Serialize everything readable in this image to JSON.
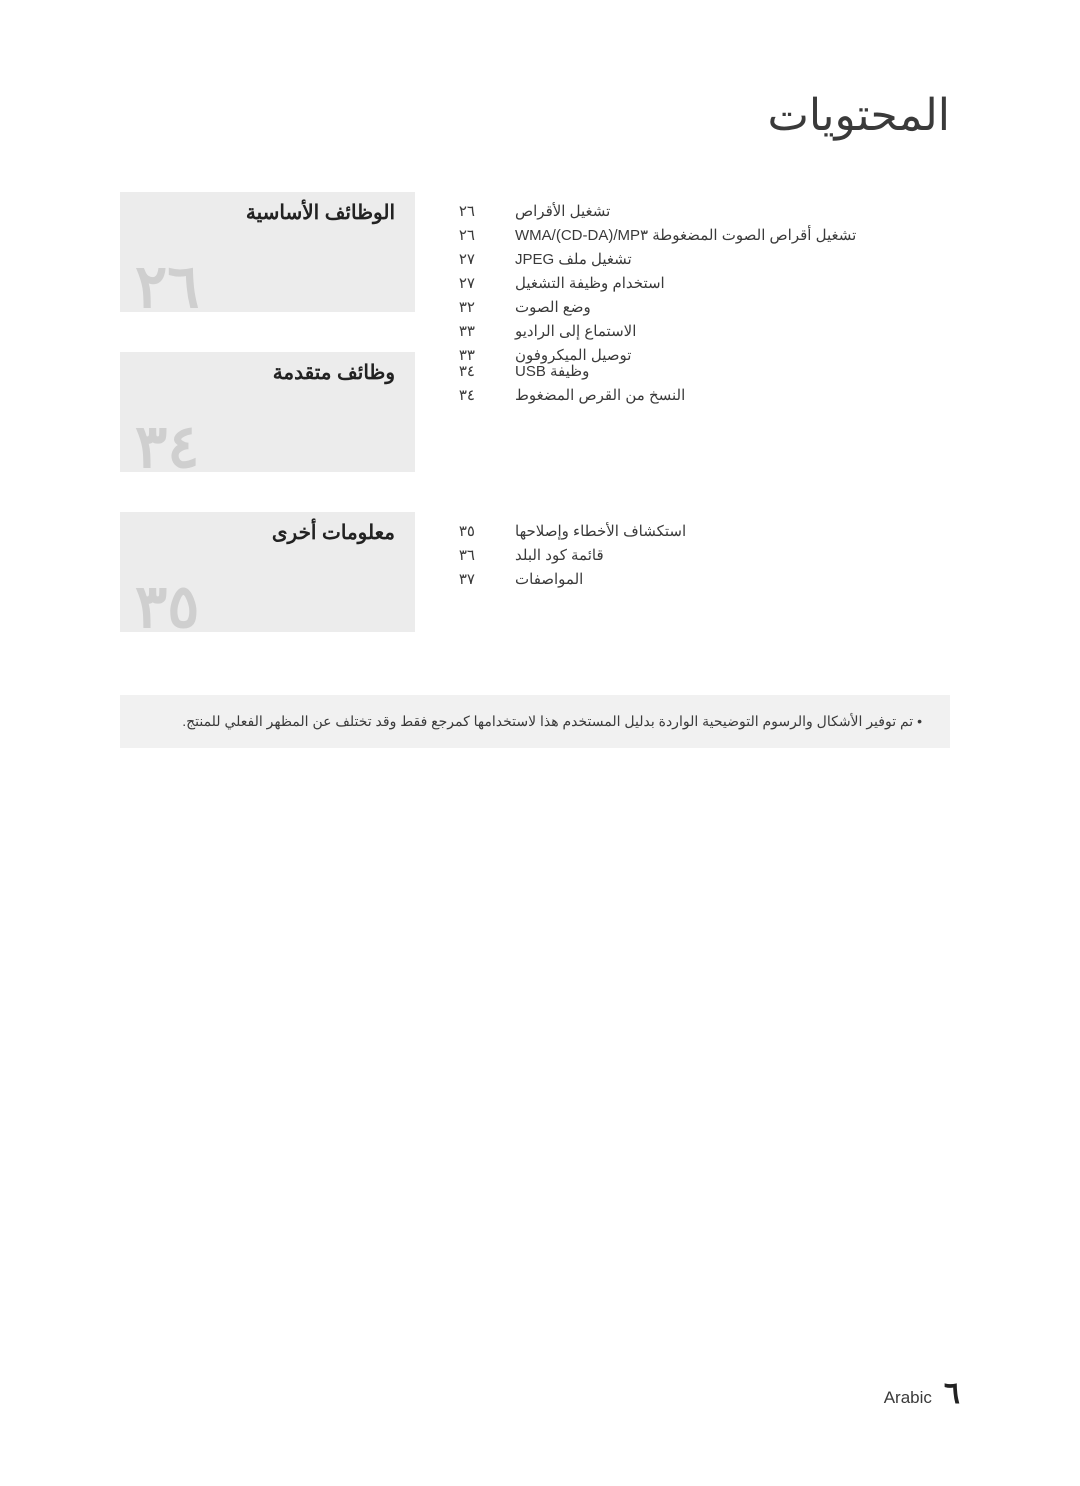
{
  "title": "المحتويات",
  "sections": [
    {
      "heading": "الوظائف الأساسية",
      "big_number": "٢٦",
      "items": [
        {
          "page": "٢٦",
          "label": "تشغيل الأقراص"
        },
        {
          "page": "٢٦",
          "label": "تشغيل أقراص الصوت المضغوطة WMA/(CD-DA)/MP٣"
        },
        {
          "page": "٢٧",
          "label": "تشغيل ملف JPEG"
        },
        {
          "page": "٢٧",
          "label": "استخدام وظيفة التشغيل"
        },
        {
          "page": "٣٢",
          "label": "وضع الصوت"
        },
        {
          "page": "٣٣",
          "label": "الاستماع إلى الراديو"
        },
        {
          "page": "٣٣",
          "label": "توصيل الميكروفون"
        }
      ]
    },
    {
      "heading": "وظائف متقدمة",
      "big_number": "٣٤",
      "items": [
        {
          "page": "٣٤",
          "label": "وظيفة USB"
        },
        {
          "page": "٣٤",
          "label": "النسخ من القرص المضغوط"
        }
      ]
    },
    {
      "heading": "معلومات أخرى",
      "big_number": "٣٥",
      "items": [
        {
          "page": "٣٥",
          "label": "استكشاف الأخطاء وإصلاحها"
        },
        {
          "page": "٣٦",
          "label": "قائمة كود البلد"
        },
        {
          "page": "٣٧",
          "label": "المواصفات"
        }
      ]
    }
  ],
  "note": "تم توفير الأشكال والرسوم التوضيحية الواردة بدليل المستخدم هذا لاستخدامها كمرجع فقط وقد تختلف عن المظهر الفعلي للمنتج.",
  "footer": {
    "lang": "Arabic",
    "page_number": "٦"
  },
  "colors": {
    "section_bg": "#ececec",
    "bignum": "#cfcfcf",
    "text": "#3a3a3a",
    "note_bg": "#f1f1f1"
  }
}
